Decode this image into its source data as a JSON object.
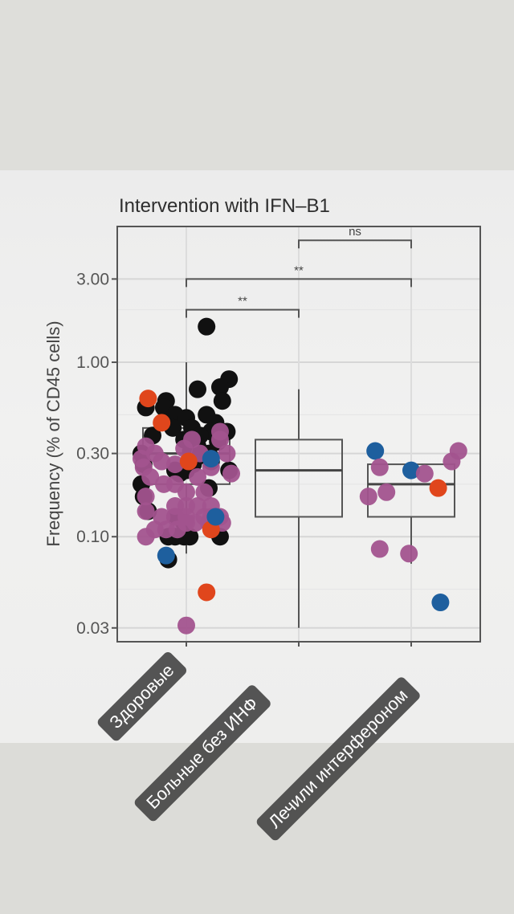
{
  "chart_data": {
    "type": "box-scatter",
    "title": "Intervention with IFN–B1",
    "ylabel": "Frequency (% of CD45 cells)",
    "xlabel": "",
    "y_scale": "log",
    "ylim": [
      0.025,
      6.0
    ],
    "y_ticks": [
      {
        "value": 0.03,
        "label": "0.03"
      },
      {
        "value": 0.1,
        "label": "0.10"
      },
      {
        "value": 0.3,
        "label": "0.30"
      },
      {
        "value": 1.0,
        "label": "1.00"
      },
      {
        "value": 3.0,
        "label": "3.00"
      }
    ],
    "grid": true,
    "categories": [
      "Здоровые",
      "Больные без ИНФ",
      "Лечили интерфероном"
    ],
    "colors": {
      "black": "#111111",
      "purple": "#a2538e",
      "red": "#e0461c",
      "blue": "#1e5f9e"
    },
    "boxes": [
      {
        "category": 0,
        "min": 0.08,
        "q1": 0.2,
        "median": 0.3,
        "q3": 0.42,
        "max": 1.0
      },
      {
        "category": 1,
        "min": 0.03,
        "q1": 0.13,
        "median": 0.24,
        "q3": 0.36,
        "max": 0.7
      },
      {
        "category": 2,
        "min": 0.07,
        "q1": 0.13,
        "median": 0.2,
        "q3": 0.26,
        "max": 0.26
      }
    ],
    "significance": [
      {
        "from": 1,
        "to": 2,
        "y": 5.0,
        "label": "ns"
      },
      {
        "from": 0,
        "to": 2,
        "y": 3.0,
        "label": "**"
      },
      {
        "from": 0,
        "to": 1,
        "y": 2.0,
        "label": "**"
      }
    ],
    "series": [
      {
        "color": "black",
        "points": [
          {
            "x": 0.18,
            "y": 1.6
          },
          {
            "x": 0.38,
            "y": 0.8
          },
          {
            "x": 0.1,
            "y": 0.7
          },
          {
            "x": 0.3,
            "y": 0.72
          },
          {
            "x": -0.18,
            "y": 0.6
          },
          {
            "x": -0.2,
            "y": 0.55
          },
          {
            "x": 0.32,
            "y": 0.6
          },
          {
            "x": -0.36,
            "y": 0.55
          },
          {
            "x": -0.1,
            "y": 0.5
          },
          {
            "x": 0.0,
            "y": 0.48
          },
          {
            "x": 0.18,
            "y": 0.5
          },
          {
            "x": 0.26,
            "y": 0.45
          },
          {
            "x": -0.12,
            "y": 0.42
          },
          {
            "x": 0.05,
            "y": 0.42
          },
          {
            "x": 0.22,
            "y": 0.4
          },
          {
            "x": 0.36,
            "y": 0.4
          },
          {
            "x": -0.3,
            "y": 0.38
          },
          {
            "x": -0.02,
            "y": 0.36
          },
          {
            "x": 0.12,
            "y": 0.38
          },
          {
            "x": 0.28,
            "y": 0.35
          },
          {
            "x": 0.1,
            "y": 0.33
          },
          {
            "x": 0.04,
            "y": 0.31
          },
          {
            "x": 0.2,
            "y": 0.3
          },
          {
            "x": -0.4,
            "y": 0.3
          },
          {
            "x": -0.38,
            "y": 0.26
          },
          {
            "x": 0.08,
            "y": 0.28
          },
          {
            "x": 0.06,
            "y": 0.26
          },
          {
            "x": 0.22,
            "y": 0.27
          },
          {
            "x": -0.1,
            "y": 0.24
          },
          {
            "x": 0.0,
            "y": 0.24
          },
          {
            "x": 0.38,
            "y": 0.24
          },
          {
            "x": -0.06,
            "y": 0.23
          },
          {
            "x": -0.4,
            "y": 0.2
          },
          {
            "x": 0.2,
            "y": 0.19
          },
          {
            "x": -0.38,
            "y": 0.17
          },
          {
            "x": -0.34,
            "y": 0.14
          },
          {
            "x": -0.1,
            "y": 0.13
          },
          {
            "x": -0.02,
            "y": 0.12
          },
          {
            "x": -0.02,
            "y": 0.1
          },
          {
            "x": 0.03,
            "y": 0.1
          },
          {
            "x": -0.16,
            "y": 0.1
          },
          {
            "x": -0.1,
            "y": 0.1
          },
          {
            "x": 0.3,
            "y": 0.1
          },
          {
            "x": -0.16,
            "y": 0.074
          }
        ]
      },
      {
        "color": "purple",
        "points": [
          {
            "x": -0.4,
            "y": 0.28
          },
          {
            "x": -0.36,
            "y": 0.33
          },
          {
            "x": -0.28,
            "y": 0.3
          },
          {
            "x": -0.22,
            "y": 0.27
          },
          {
            "x": -0.1,
            "y": 0.26
          },
          {
            "x": -0.02,
            "y": 0.32
          },
          {
            "x": 0.05,
            "y": 0.36
          },
          {
            "x": 0.12,
            "y": 0.3
          },
          {
            "x": 0.22,
            "y": 0.25
          },
          {
            "x": 0.3,
            "y": 0.36
          },
          {
            "x": 0.36,
            "y": 0.3
          },
          {
            "x": 0.4,
            "y": 0.23
          },
          {
            "x": 0.3,
            "y": 0.4
          },
          {
            "x": -0.38,
            "y": 0.25
          },
          {
            "x": -0.32,
            "y": 0.22
          },
          {
            "x": -0.2,
            "y": 0.2
          },
          {
            "x": -0.1,
            "y": 0.2
          },
          {
            "x": 0.0,
            "y": 0.18
          },
          {
            "x": 0.1,
            "y": 0.22
          },
          {
            "x": 0.16,
            "y": 0.18
          },
          {
            "x": -0.36,
            "y": 0.17
          },
          {
            "x": -0.1,
            "y": 0.15
          },
          {
            "x": 0.0,
            "y": 0.15
          },
          {
            "x": 0.1,
            "y": 0.15
          },
          {
            "x": 0.22,
            "y": 0.15
          },
          {
            "x": 0.3,
            "y": 0.13
          },
          {
            "x": -0.36,
            "y": 0.14
          },
          {
            "x": -0.22,
            "y": 0.13
          },
          {
            "x": -0.1,
            "y": 0.13
          },
          {
            "x": 0.0,
            "y": 0.13
          },
          {
            "x": 0.08,
            "y": 0.12
          },
          {
            "x": 0.16,
            "y": 0.13
          },
          {
            "x": 0.22,
            "y": 0.13
          },
          {
            "x": -0.36,
            "y": 0.1
          },
          {
            "x": -0.28,
            "y": 0.11
          },
          {
            "x": -0.18,
            "y": 0.11
          },
          {
            "x": -0.08,
            "y": 0.11
          },
          {
            "x": 0.0,
            "y": 0.12
          },
          {
            "x": 0.2,
            "y": 0.12
          },
          {
            "x": 0.32,
            "y": 0.12
          },
          {
            "x": 0.0,
            "y": 0.031
          }
        ]
      },
      {
        "color": "red",
        "points": [
          {
            "x": -0.34,
            "y": 0.62
          },
          {
            "x": -0.22,
            "y": 0.45
          },
          {
            "x": 0.02,
            "y": 0.27
          },
          {
            "x": 0.22,
            "y": 0.11
          },
          {
            "x": 0.18,
            "y": 0.048
          },
          {
            "x": 2.24,
            "y": 0.19
          }
        ]
      },
      {
        "color": "blue",
        "points": [
          {
            "x": 0.22,
            "y": 0.28
          },
          {
            "x": -0.18,
            "y": 0.078
          },
          {
            "x": 0.26,
            "y": 0.13
          },
          {
            "x": 1.68,
            "y": 0.31
          },
          {
            "x": 2.0,
            "y": 0.24
          },
          {
            "x": 2.26,
            "y": 0.042
          }
        ]
      },
      {
        "color": "purple",
        "points": [
          {
            "x": 1.72,
            "y": 0.25
          },
          {
            "x": 1.62,
            "y": 0.17
          },
          {
            "x": 1.78,
            "y": 0.18
          },
          {
            "x": 2.12,
            "y": 0.23
          },
          {
            "x": 2.36,
            "y": 0.27
          },
          {
            "x": 2.42,
            "y": 0.31
          },
          {
            "x": 1.72,
            "y": 0.085
          },
          {
            "x": 1.98,
            "y": 0.08
          }
        ]
      }
    ]
  }
}
